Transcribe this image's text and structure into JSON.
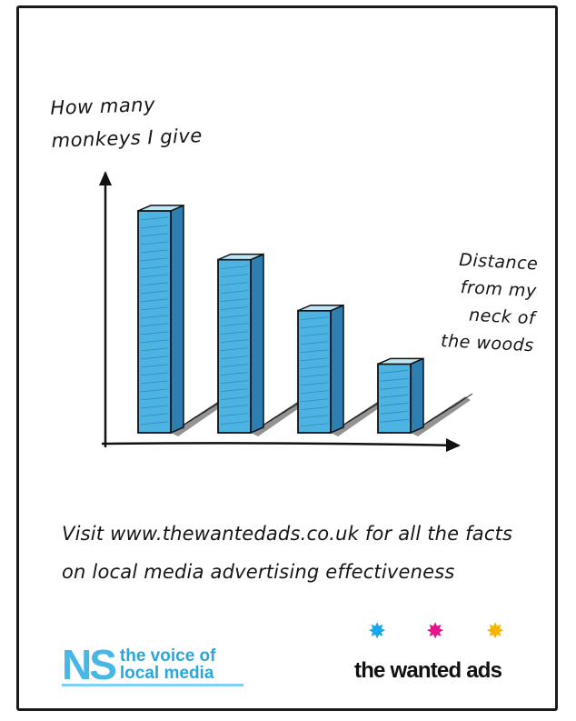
{
  "chart_data": {
    "type": "bar",
    "ylabel_lines": [
      "How many",
      "monkeys I give"
    ],
    "xlabel_lines": [
      "Distance",
      "from my",
      "neck of",
      "the woods"
    ],
    "categories": [
      "",
      "",
      "",
      ""
    ],
    "values": [
      100,
      78,
      55,
      31
    ],
    "ylim": [
      0,
      120
    ],
    "grid": false,
    "bar_color": "#4cb3e3",
    "bar_dark": "#2c7fb0",
    "bar_top": "#bfe6f7"
  },
  "footer": {
    "cta_lines": [
      "Visit www.thewantedads.co.uk for all the facts",
      "on local media advertising effectiveness"
    ],
    "ns_mark": "NS",
    "ns_lines": [
      "the voice of",
      "local media"
    ],
    "wanted_ads": "the wanted ads",
    "stars": [
      {
        "color": "#1aa7e8",
        "icon": "star-burst-icon"
      },
      {
        "color": "#e0168a",
        "icon": "star-burst-icon"
      },
      {
        "color": "#f4b400",
        "icon": "star-burst-icon"
      }
    ]
  }
}
